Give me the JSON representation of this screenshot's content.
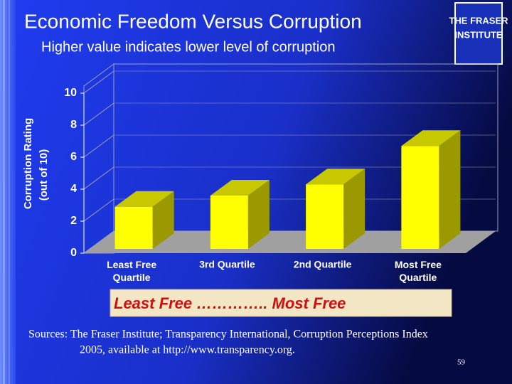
{
  "chart_data": {
    "type": "bar3d",
    "title": "Economic Freedom Versus Corruption",
    "subtitle": "Higher value indicates lower level of corruption",
    "y_label": [
      "Corruption Rating",
      "(out of 10)"
    ],
    "categories": [
      "Least Free Quartile",
      "3rd Quartile",
      "2nd Quartile",
      "Most Free Quartile"
    ],
    "values": [
      2.9,
      3.6,
      4.3,
      6.7
    ],
    "color": "#ffff00",
    "ylim": [
      0,
      10
    ],
    "yticks": [
      0,
      2,
      4,
      6,
      8,
      10
    ],
    "grid": true,
    "banner": "Least Free ………….. Most Free",
    "sources": [
      "Sources: The Fraser Institute; Transparency International, Corruption Perceptions Index",
      "2005, available at http://www.transparency.org."
    ],
    "page_number": "59",
    "logo": [
      "THE FRASER",
      "INSTITUTE"
    ]
  }
}
